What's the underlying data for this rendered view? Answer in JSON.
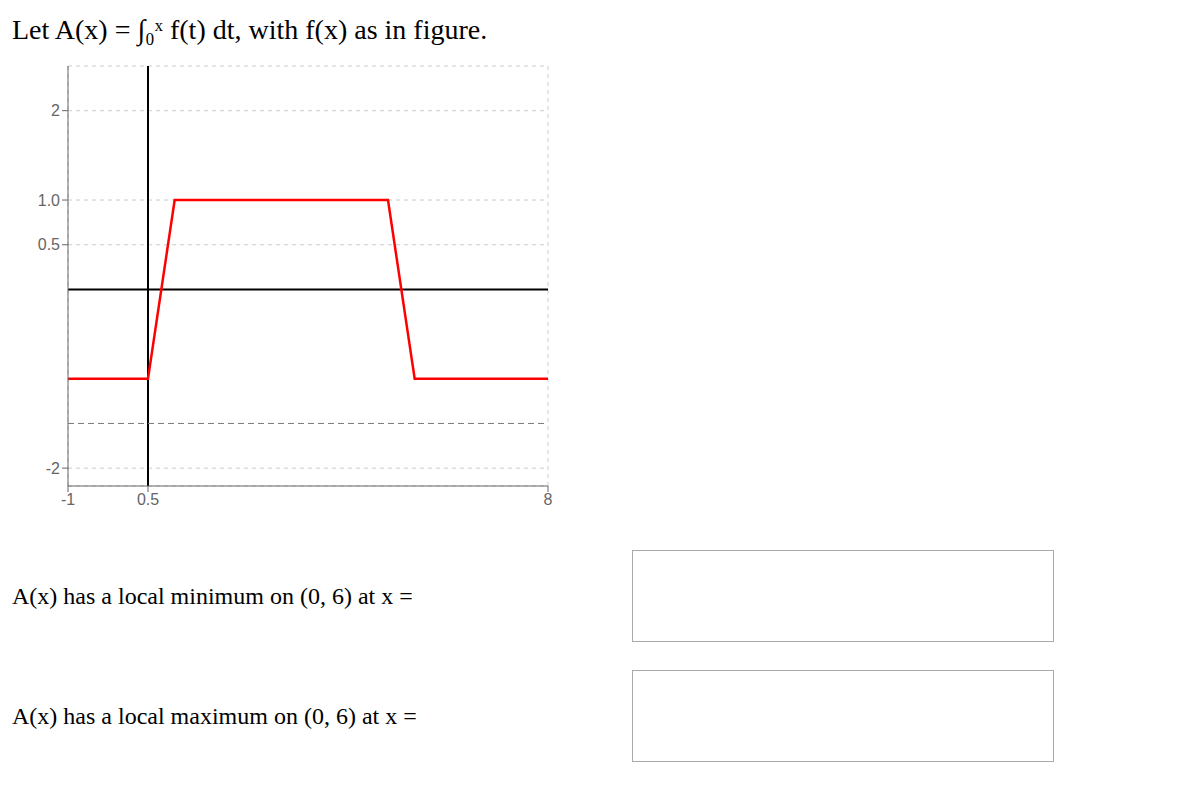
{
  "chart_data": {
    "type": "line",
    "title": "Let A(x) = ∫₀ˣ f(t) dt, with f(x) as in figure.",
    "x": [
      -1,
      0.5,
      1,
      2,
      4,
      5,
      5.5,
      8
    ],
    "values": [
      -1,
      -1,
      1,
      1,
      1,
      1,
      -1,
      -1
    ],
    "color": "#ff0000",
    "xlim": [
      -1,
      8
    ],
    "ylim": [
      -2.2,
      2.5
    ],
    "xticks": [
      -1,
      0.5,
      8
    ],
    "yticks": [
      -2,
      0.5,
      {
        "value": 1,
        "label": "1.0"
      },
      2
    ],
    "grid": true,
    "reference_lines": [
      {
        "axis": "y",
        "value": 0
      },
      {
        "axis": "x",
        "value": 0.5
      },
      {
        "axis": "y",
        "value": -1.5,
        "line_style": "dashed"
      }
    ],
    "annotations": [
      "A(x) has a local minimum on (0, 6) at x =",
      "A(x) has a local maximum on (0, 6) at x ="
    ]
  }
}
